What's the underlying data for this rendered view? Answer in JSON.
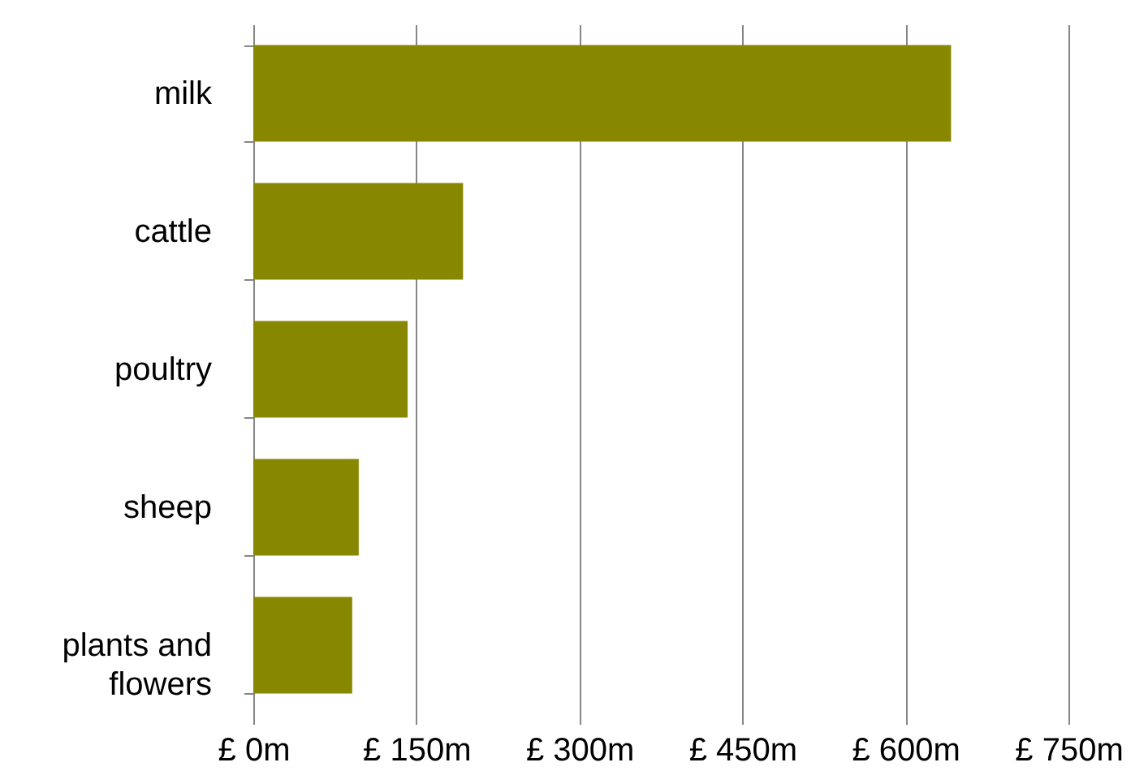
{
  "chart_data": {
    "type": "bar",
    "orientation": "horizontal",
    "categories": [
      "milk",
      "cattle",
      "poultry",
      "sheep",
      "plants and flowers"
    ],
    "values": [
      642,
      193,
      142,
      97,
      91
    ],
    "color": "#878700",
    "xlim": [
      0,
      750
    ],
    "xticks": [
      {
        "value": 0,
        "label": "£ 0m"
      },
      {
        "value": 150,
        "label": "£ 150m"
      },
      {
        "value": 300,
        "label": "£ 300m"
      },
      {
        "value": 450,
        "label": "£ 450m"
      },
      {
        "value": 600,
        "label": "£ 600m"
      },
      {
        "value": 750,
        "label": "£ 750m"
      }
    ],
    "grid": "x"
  }
}
